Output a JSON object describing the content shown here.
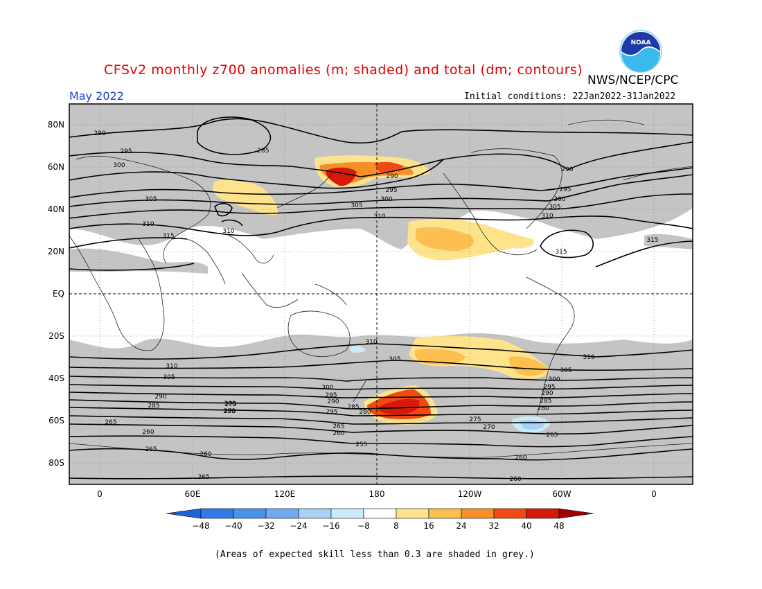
{
  "title": "CFSv2 monthly z700 anomalies (m; shaded) and total (dm; contours)",
  "agency": "NWS/NCEP/CPC",
  "month": "May 2022",
  "initial_conditions": "Initial conditions: 22Jan2022-31Jan2022",
  "skill_note": "(Areas of expected skill less than 0.3 are shaded in grey.)",
  "logo_text": "NOAA",
  "lat_labels": [
    "80N",
    "60N",
    "40N",
    "20N",
    "EQ",
    "20S",
    "40S",
    "60S",
    "80S"
  ],
  "lon_labels": [
    "0",
    "60E",
    "120E",
    "180",
    "120W",
    "60W",
    "0"
  ],
  "colorbar": {
    "ticks": [
      "-48",
      "-40",
      "-32",
      "-24",
      "-16",
      "-8",
      "8",
      "16",
      "24",
      "32",
      "40",
      "48"
    ],
    "colors": [
      "#1e64d6",
      "#2f7ae6",
      "#4a92ee",
      "#70abf2",
      "#a8d2f5",
      "#c9ecf8",
      "#ffffff",
      "#fde48c",
      "#fdc050",
      "#f8902a",
      "#ef4a14",
      "#d61a0a",
      "#a00000"
    ]
  },
  "contour_labels": [
    {
      "text": "290"
    },
    {
      "text": "285"
    },
    {
      "text": "295"
    },
    {
      "text": "300"
    },
    {
      "text": "305"
    },
    {
      "text": "310"
    },
    {
      "text": "315"
    },
    {
      "text": "290"
    },
    {
      "text": "295"
    },
    {
      "text": "300"
    },
    {
      "text": "305"
    },
    {
      "text": "310"
    },
    {
      "text": "315"
    },
    {
      "text": "290"
    },
    {
      "text": "295"
    },
    {
      "text": "300"
    },
    {
      "text": "305"
    },
    {
      "text": "310"
    },
    {
      "text": "315"
    },
    {
      "text": "310"
    },
    {
      "text": "305"
    },
    {
      "text": "310"
    },
    {
      "text": "305"
    },
    {
      "text": "300"
    },
    {
      "text": "295"
    },
    {
      "text": "290"
    },
    {
      "text": "285"
    },
    {
      "text": "280"
    },
    {
      "text": "265"
    },
    {
      "text": "260"
    },
    {
      "text": "265"
    },
    {
      "text": "260"
    },
    {
      "text": "265"
    },
    {
      "text": "310"
    },
    {
      "text": "300"
    },
    {
      "text": "295"
    },
    {
      "text": "290"
    },
    {
      "text": "285"
    },
    {
      "text": "280"
    },
    {
      "text": "275"
    },
    {
      "text": "270"
    },
    {
      "text": "265"
    },
    {
      "text": "260"
    },
    {
      "text": "255"
    },
    {
      "text": "310"
    },
    {
      "text": "305"
    },
    {
      "text": "300"
    },
    {
      "text": "295"
    },
    {
      "text": "290"
    },
    {
      "text": "285"
    },
    {
      "text": "280"
    },
    {
      "text": "275"
    },
    {
      "text": "270"
    },
    {
      "text": "265"
    },
    {
      "text": "260"
    },
    {
      "text": "260"
    }
  ]
}
